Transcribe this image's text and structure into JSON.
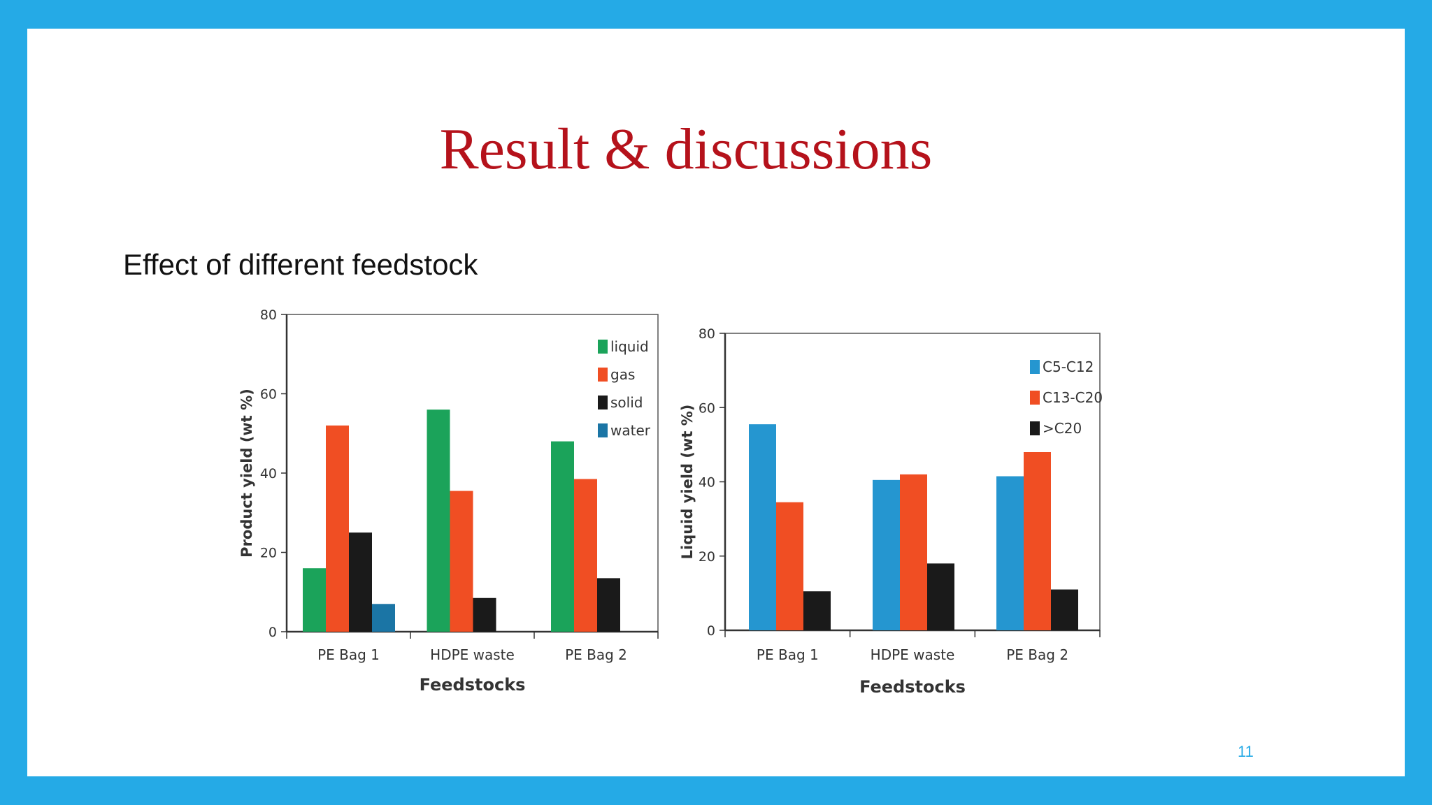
{
  "slide": {
    "title": "Result & discussions",
    "subtitle": "Effect of different feedstock",
    "page_number": "11"
  },
  "chart_data": [
    {
      "type": "bar",
      "categories": [
        "PE Bag 1",
        "HDPE waste",
        "PE Bag 2"
      ],
      "series": [
        {
          "name": "liquid",
          "color": "#1ba35a",
          "values": [
            16,
            56,
            48
          ]
        },
        {
          "name": "gas",
          "color": "#f04e23",
          "values": [
            52,
            35.5,
            38.5
          ]
        },
        {
          "name": "solid",
          "color": "#1a1a1a",
          "values": [
            25,
            8.5,
            13.5
          ]
        },
        {
          "name": "water",
          "color": "#1b75a5",
          "values": [
            7,
            0,
            0
          ]
        }
      ],
      "xlabel": "Feedstocks",
      "ylabel": "Product yield (wt %)",
      "ylim": [
        0,
        80
      ],
      "yticks": [
        "0",
        "20",
        "40",
        "60",
        "80"
      ],
      "legend_position": "top-right",
      "grid": false
    },
    {
      "type": "bar",
      "categories": [
        "PE Bag 1",
        "HDPE waste",
        "PE Bag 2"
      ],
      "series": [
        {
          "name": "C5-C12",
          "color": "#2596d0",
          "values": [
            55.5,
            40.5,
            41.5
          ]
        },
        {
          "name": "C13-C20",
          "color": "#f04e23",
          "values": [
            34.5,
            42,
            48
          ]
        },
        {
          "name": ">C20",
          "color": "#1a1a1a",
          "values": [
            10.5,
            18,
            11
          ]
        }
      ],
      "xlabel": "Feedstocks",
      "ylabel": "Liquid yield (wt %)",
      "ylim": [
        0,
        80
      ],
      "yticks": [
        "0",
        "20",
        "40",
        "60",
        "80"
      ],
      "legend_position": "top-right",
      "grid": false
    }
  ]
}
